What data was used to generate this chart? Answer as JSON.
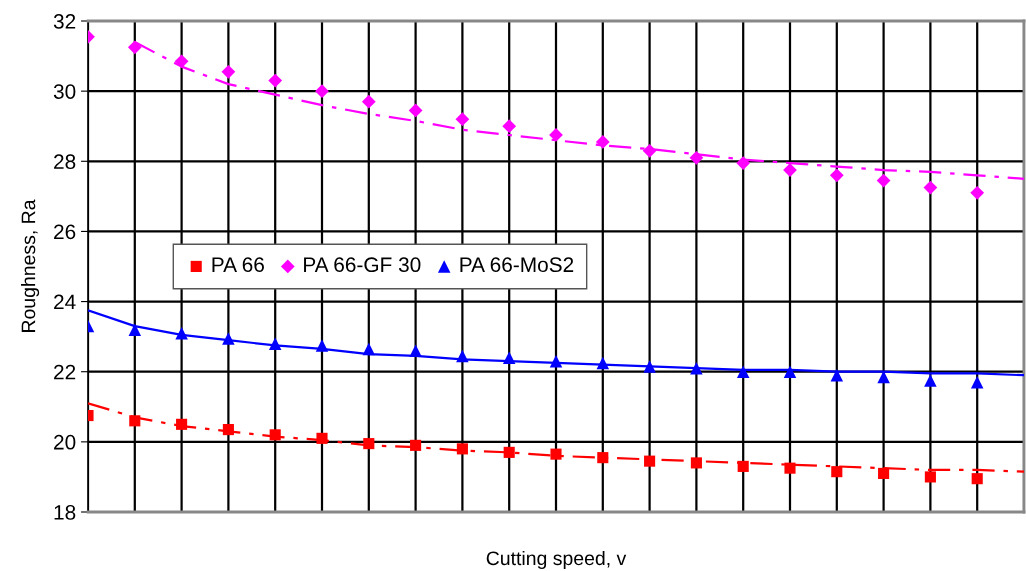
{
  "chart_data": {
    "type": "line",
    "xlabel": "Cutting speed, v",
    "ylabel": "Roughness, Ra",
    "categories": [
      null,
      null,
      null,
      null,
      null,
      null,
      null,
      null,
      null,
      null,
      null,
      null,
      null,
      null,
      null,
      null,
      null,
      null,
      null,
      null,
      null
    ],
    "ylim": [
      18,
      32
    ],
    "yticks": [
      18,
      20,
      22,
      24,
      26,
      28,
      30,
      32
    ],
    "tick_labels": "y",
    "grid": true,
    "legend": "center left",
    "series": [
      {
        "name": "PA 66",
        "type": "scatter",
        "color": "#ff0000",
        "marker": "square",
        "values": [
          20.75,
          20.6,
          20.5,
          20.35,
          20.2,
          20.1,
          19.95,
          19.9,
          19.8,
          19.7,
          19.65,
          19.55,
          19.45,
          19.4,
          19.3,
          19.25,
          19.15,
          19.1,
          19.0,
          18.95,
          null
        ]
      },
      {
        "name": "PA 66-GF 30",
        "type": "scatter",
        "color": "#ff00ff",
        "marker": "diamond",
        "values": [
          31.55,
          31.25,
          30.85,
          30.55,
          30.3,
          30.0,
          29.7,
          29.45,
          29.2,
          29.0,
          28.75,
          28.55,
          28.3,
          28.1,
          27.95,
          27.75,
          27.6,
          27.45,
          27.25,
          27.1,
          null
        ]
      },
      {
        "name": "PA 66-MoS2",
        "type": "scatter",
        "color": "#0000ff",
        "marker": "triangle",
        "values": [
          23.3,
          23.2,
          23.1,
          22.95,
          22.8,
          22.75,
          22.65,
          22.6,
          22.45,
          22.4,
          22.3,
          22.25,
          22.15,
          22.1,
          22.0,
          22.0,
          21.9,
          21.85,
          21.75,
          21.7,
          null
        ]
      },
      {
        "color": "#ff0000",
        "line_style": "dashdot",
        "values": [
          21.1,
          20.7,
          20.45,
          20.3,
          20.15,
          20.05,
          19.9,
          19.85,
          19.75,
          19.7,
          19.6,
          19.55,
          19.5,
          19.45,
          19.4,
          19.35,
          19.3,
          19.25,
          19.2,
          19.2,
          19.15
        ]
      },
      {
        "color": "#ff00ff",
        "line_style": "dashdot",
        "values": [
          null,
          31.4,
          30.7,
          30.2,
          29.9,
          29.6,
          29.35,
          29.15,
          28.9,
          28.75,
          28.6,
          28.45,
          28.35,
          28.2,
          28.05,
          27.95,
          27.85,
          27.75,
          27.7,
          27.6,
          27.5
        ]
      },
      {
        "color": "#0000ff",
        "line_style": "solid",
        "values": [
          23.75,
          23.3,
          23.05,
          22.9,
          22.75,
          22.65,
          22.5,
          22.45,
          22.35,
          22.3,
          22.25,
          22.2,
          22.15,
          22.1,
          22.05,
          22.05,
          22.0,
          22.0,
          21.95,
          21.95,
          21.9
        ]
      }
    ]
  }
}
